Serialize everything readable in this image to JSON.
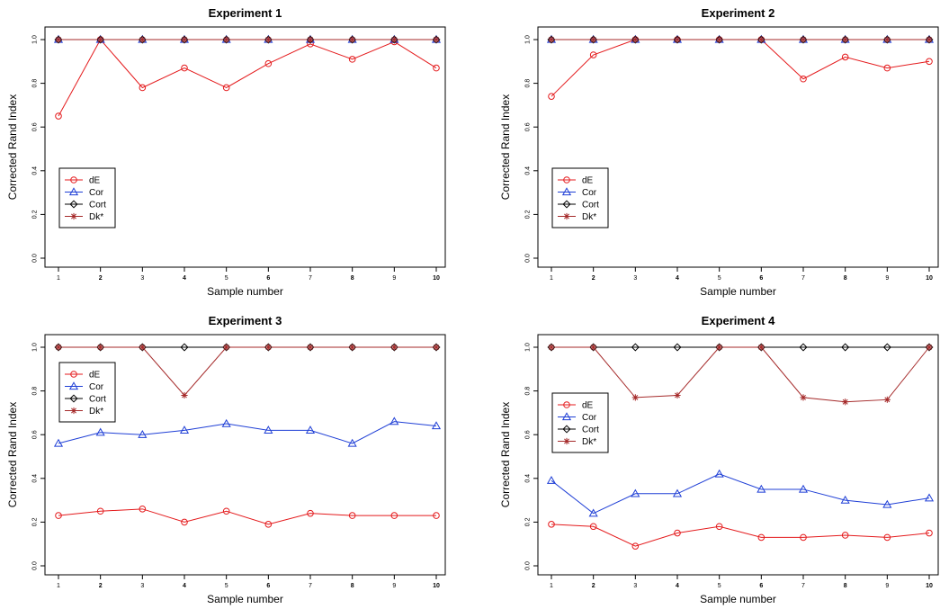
{
  "chart_data": [
    {
      "type": "line",
      "title": "Experiment 1",
      "xlabel": "Sample number",
      "ylabel": "Corrected Rand Index",
      "x": [
        1,
        2,
        3,
        4,
        5,
        6,
        7,
        8,
        9,
        10
      ],
      "ylim": [
        0,
        1
      ],
      "yticks": [
        "0.0",
        "0.2",
        "0.4",
        "0.6",
        "0.8",
        "1.0"
      ],
      "legend_position": "middle-left",
      "series": [
        {
          "name": "dE",
          "color": "#e41a1c",
          "marker": "circle",
          "values": [
            0.65,
            1.0,
            0.78,
            0.87,
            0.78,
            0.89,
            0.98,
            0.91,
            0.99,
            0.87
          ]
        },
        {
          "name": "Cor",
          "color": "#1f3fd6",
          "marker": "triangle",
          "values": [
            1,
            1,
            1,
            1,
            1,
            1,
            1,
            1,
            1,
            1
          ]
        },
        {
          "name": "Cort",
          "color": "#000000",
          "marker": "diamond",
          "values": [
            1,
            1,
            1,
            1,
            1,
            1,
            1,
            1,
            1,
            1
          ]
        },
        {
          "name": "Dk*",
          "color": "#a52a2a",
          "marker": "star",
          "values": [
            1,
            1,
            1,
            1,
            1,
            1,
            1,
            1,
            1,
            1
          ]
        }
      ]
    },
    {
      "type": "line",
      "title": "Experiment 2",
      "xlabel": "Sample number",
      "ylabel": "Corrected Rand Index",
      "x": [
        1,
        2,
        3,
        4,
        5,
        6,
        7,
        8,
        9,
        10
      ],
      "ylim": [
        0,
        1
      ],
      "yticks": [
        "0.0",
        "0.2",
        "0.4",
        "0.6",
        "0.8",
        "1.0"
      ],
      "legend_position": "middle-left",
      "series": [
        {
          "name": "dE",
          "color": "#e41a1c",
          "marker": "circle",
          "values": [
            0.74,
            0.93,
            1.0,
            1.0,
            1.0,
            1.0,
            0.82,
            0.92,
            0.87,
            0.9
          ]
        },
        {
          "name": "Cor",
          "color": "#1f3fd6",
          "marker": "triangle",
          "values": [
            1,
            1,
            1,
            1,
            1,
            1,
            1,
            1,
            1,
            1
          ]
        },
        {
          "name": "Cort",
          "color": "#000000",
          "marker": "diamond",
          "values": [
            1,
            1,
            1,
            1,
            1,
            1,
            1,
            1,
            1,
            1
          ]
        },
        {
          "name": "Dk*",
          "color": "#a52a2a",
          "marker": "star",
          "values": [
            1,
            1,
            1,
            1,
            1,
            1,
            1,
            1,
            1,
            1
          ]
        }
      ]
    },
    {
      "type": "line",
      "title": "Experiment 3",
      "xlabel": "Sample number",
      "ylabel": "Corrected Rand Index",
      "x": [
        1,
        2,
        3,
        4,
        5,
        6,
        7,
        8,
        9,
        10
      ],
      "ylim": [
        0,
        1
      ],
      "yticks": [
        "0.0",
        "0.2",
        "0.4",
        "0.6",
        "0.8",
        "1.0"
      ],
      "legend_position": "top-left",
      "series": [
        {
          "name": "dE",
          "color": "#e41a1c",
          "marker": "circle",
          "values": [
            0.23,
            0.25,
            0.26,
            0.2,
            0.25,
            0.19,
            0.24,
            0.23,
            0.23,
            0.23
          ]
        },
        {
          "name": "Cor",
          "color": "#1f3fd6",
          "marker": "triangle",
          "values": [
            0.56,
            0.61,
            0.6,
            0.62,
            0.65,
            0.62,
            0.62,
            0.56,
            0.66,
            0.64
          ]
        },
        {
          "name": "Cort",
          "color": "#000000",
          "marker": "diamond",
          "values": [
            1,
            1,
            1,
            1,
            1,
            1,
            1,
            1,
            1,
            1
          ]
        },
        {
          "name": "Dk*",
          "color": "#a52a2a",
          "marker": "star",
          "values": [
            1,
            1,
            1,
            0.78,
            1,
            1,
            1,
            1,
            1,
            1
          ]
        }
      ]
    },
    {
      "type": "line",
      "title": "Experiment 4",
      "xlabel": "Sample number",
      "ylabel": "Corrected Rand Index",
      "x": [
        1,
        2,
        3,
        4,
        5,
        6,
        7,
        8,
        9,
        10
      ],
      "ylim": [
        0,
        1
      ],
      "yticks": [
        "0.0",
        "0.2",
        "0.4",
        "0.6",
        "0.8",
        "1.0"
      ],
      "legend_position": "middle-left",
      "series": [
        {
          "name": "dE",
          "color": "#e41a1c",
          "marker": "circle",
          "values": [
            0.19,
            0.18,
            0.09,
            0.15,
            0.18,
            0.13,
            0.13,
            0.14,
            0.13,
            0.15
          ]
        },
        {
          "name": "Cor",
          "color": "#1f3fd6",
          "marker": "triangle",
          "values": [
            0.39,
            0.24,
            0.33,
            0.33,
            0.42,
            0.35,
            0.35,
            0.3,
            0.28,
            0.31
          ]
        },
        {
          "name": "Cort",
          "color": "#000000",
          "marker": "diamond",
          "values": [
            1,
            1,
            1,
            1,
            1,
            1,
            1,
            1,
            1,
            1
          ]
        },
        {
          "name": "Dk*",
          "color": "#a52a2a",
          "marker": "star",
          "values": [
            1,
            1,
            0.77,
            0.78,
            1,
            1,
            0.77,
            0.75,
            0.76,
            1
          ]
        }
      ]
    }
  ]
}
